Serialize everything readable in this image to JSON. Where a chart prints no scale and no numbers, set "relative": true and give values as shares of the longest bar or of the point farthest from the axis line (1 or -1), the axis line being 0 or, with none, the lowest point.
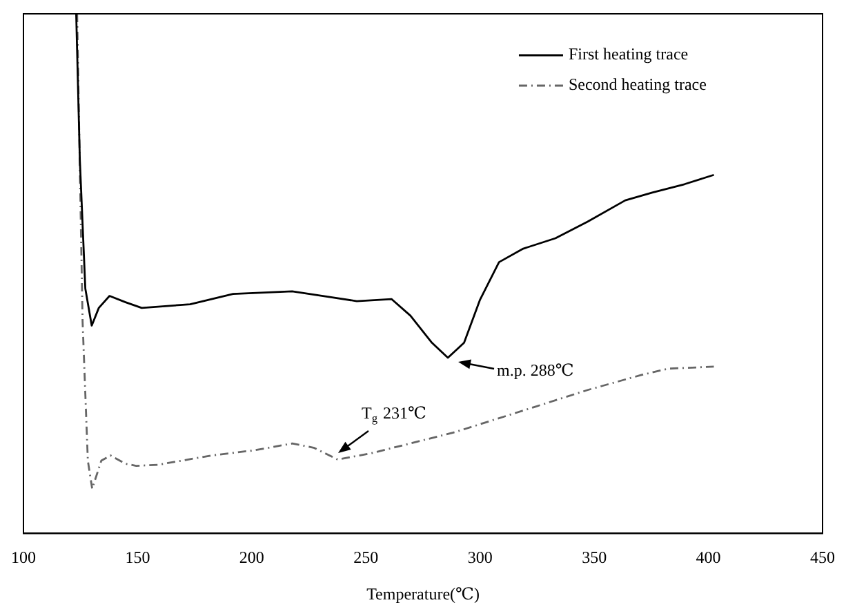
{
  "chart_data": {
    "type": "line",
    "relative": true,
    "xlabel": "Temperature(℃)",
    "xlim": [
      100,
      450
    ],
    "xticks": [
      100,
      150,
      200,
      250,
      300,
      350,
      400,
      450
    ],
    "grid": false,
    "legend": "top right",
    "marker": "none",
    "series": [
      {
        "name": "First heating trace",
        "color": "#000000",
        "line_style": "solid",
        "x": [
          123.1,
          124.7,
          127.1,
          129.9,
          133,
          137.7,
          144.7,
          151.8,
          173,
          191.8,
          217.7,
          234.2,
          246,
          261.2,
          269.5,
          278.9,
          285.9,
          293,
          300,
          308.3,
          318.9,
          333,
          347.1,
          363.6,
          375.4,
          389.5,
          402.4
        ],
        "values": [
          1,
          0.718,
          0.471,
          0.4,
          0.434,
          0.457,
          0.445,
          0.434,
          0.441,
          0.461,
          0.466,
          0.455,
          0.447,
          0.451,
          0.419,
          0.367,
          0.338,
          0.367,
          0.45,
          0.522,
          0.548,
          0.568,
          0.6,
          0.641,
          0.656,
          0.672,
          0.69
        ]
      },
      {
        "name": "Second heating trace",
        "color": "#666666",
        "line_style": "dashed",
        "x": [
          123.5,
          125.9,
          128.2,
          130.1,
          134.1,
          138.1,
          144.7,
          149.4,
          158.8,
          182.4,
          201.2,
          217.7,
          227.1,
          237.7,
          253,
          288.3,
          323.6,
          347.1,
          370.7,
          382.4,
          402.4
        ],
        "values": [
          1,
          0.408,
          0.14,
          0.086,
          0.14,
          0.15,
          0.134,
          0.13,
          0.132,
          0.15,
          0.16,
          0.173,
          0.165,
          0.142,
          0.155,
          0.194,
          0.243,
          0.276,
          0.305,
          0.317,
          0.321
        ]
      }
    ],
    "annotations": [
      {
        "text": "m.p. 288℃",
        "x": 288,
        "y": 0.338
      },
      {
        "text": "T$_{g}$ 231℃",
        "x": 236,
        "y": 0.145
      }
    ]
  }
}
